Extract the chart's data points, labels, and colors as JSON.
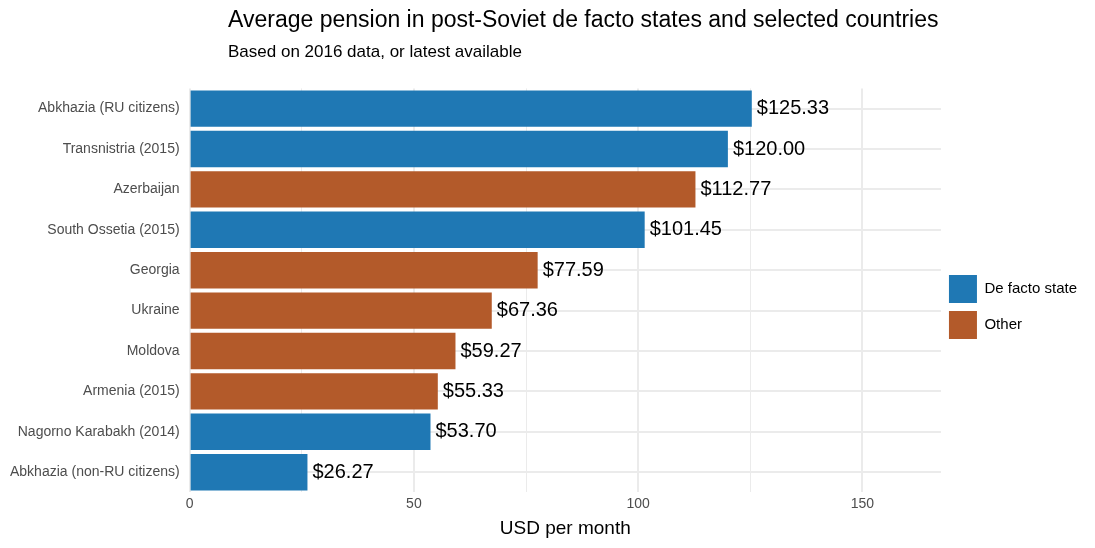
{
  "chart_data": {
    "type": "bar",
    "orientation": "horizontal",
    "title": "Average pension in post-Soviet de facto states and selected countries",
    "subtitle": "Based on 2016 data, or latest available",
    "xlabel": "USD per month",
    "categories": [
      "Abkhazia (RU citizens)",
      "Transnistria (2015)",
      "Azerbaijan",
      "South Ossetia (2015)",
      "Georgia",
      "Ukraine",
      "Moldova",
      "Armenia (2015)",
      "Nagorno Karabakh (2014)",
      "Abkhazia (non-RU citizens)"
    ],
    "series": [
      {
        "name": "De facto state",
        "color": "#1f78b4",
        "values": [
          125.33,
          120.0,
          null,
          101.45,
          null,
          null,
          null,
          null,
          53.7,
          26.27
        ],
        "value_labels": [
          "$125.33",
          "$120.00",
          null,
          "$101.45",
          null,
          null,
          null,
          null,
          "$53.70",
          "$26.27"
        ]
      },
      {
        "name": "Other",
        "color": "#b35a2a",
        "values": [
          null,
          null,
          112.77,
          null,
          77.59,
          67.36,
          59.27,
          55.33,
          null,
          null
        ],
        "value_labels": [
          null,
          null,
          "$112.77",
          null,
          "$77.59",
          "$67.36",
          "$59.27",
          "$55.33",
          null,
          null
        ]
      }
    ],
    "xlim": [
      0,
      167.5
    ],
    "xticks": [
      0,
      {
        "value": 25,
        "label": null
      },
      50,
      {
        "value": 75,
        "label": null
      },
      100,
      {
        "value": 125,
        "label": null
      },
      150
    ],
    "grid": true,
    "legend": "right"
  }
}
